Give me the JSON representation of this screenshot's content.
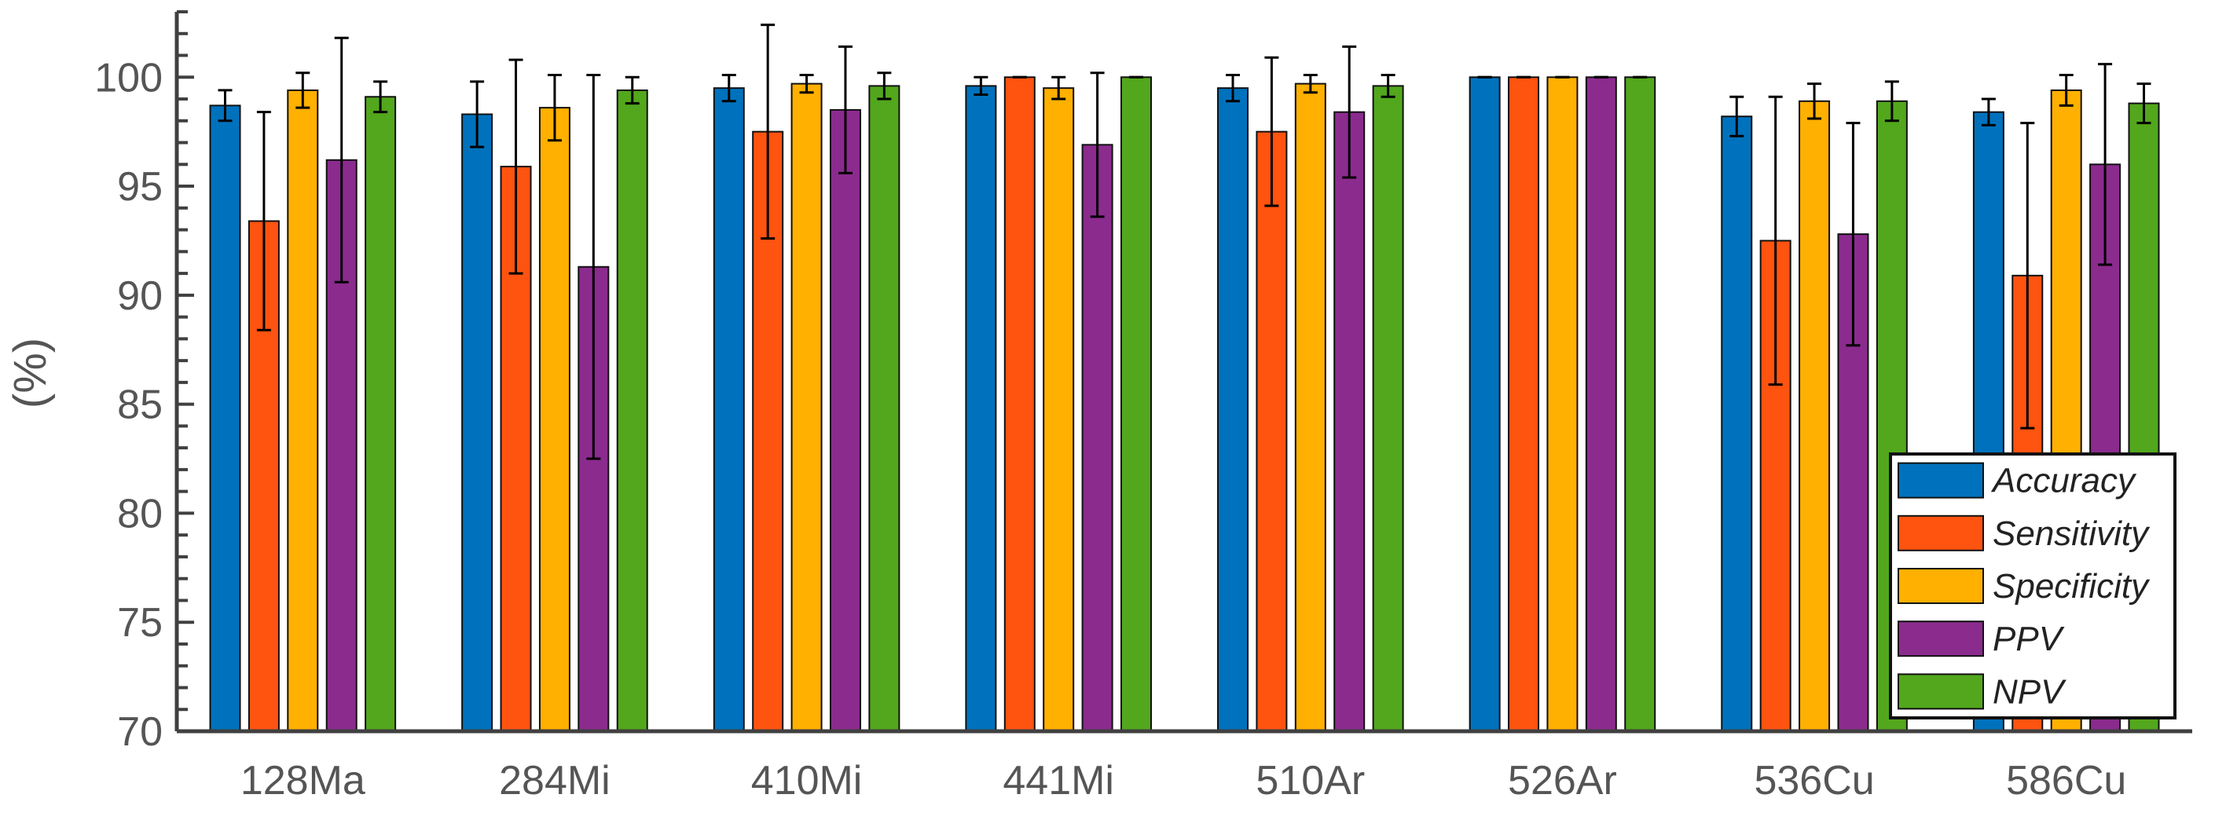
{
  "chart_data": {
    "type": "bar",
    "title": "",
    "xlabel": "",
    "ylabel": "(%)",
    "ylim": [
      70,
      103
    ],
    "yticks": [
      70,
      75,
      80,
      85,
      90,
      95,
      100
    ],
    "categories": [
      "128Ma",
      "284Mi",
      "410Mi",
      "441Mi",
      "510Ar",
      "526Ar",
      "536Cu",
      "586Cu"
    ],
    "legend_position": "bottom-right",
    "series": [
      {
        "name": "Accuracy",
        "color": "#0072BD",
        "values": [
          98.7,
          98.3,
          99.5,
          99.6,
          99.5,
          100.0,
          98.2,
          98.4
        ],
        "errors": [
          0.7,
          1.5,
          0.6,
          0.4,
          0.6,
          0.0,
          0.9,
          0.6
        ]
      },
      {
        "name": "Sensitivity",
        "color": "#FF5310",
        "values": [
          93.4,
          95.9,
          97.5,
          100.0,
          97.5,
          100.0,
          92.5,
          90.9
        ],
        "errors": [
          5.0,
          4.9,
          4.9,
          0.0,
          3.4,
          0.0,
          6.6,
          7.0
        ]
      },
      {
        "name": "Specificity",
        "color": "#FFB000",
        "values": [
          99.4,
          98.6,
          99.7,
          99.5,
          99.7,
          100.0,
          98.9,
          99.4
        ],
        "errors": [
          0.8,
          1.5,
          0.4,
          0.5,
          0.4,
          0.0,
          0.8,
          0.7
        ]
      },
      {
        "name": "PPV",
        "color": "#8B2B8E",
        "values": [
          96.2,
          91.3,
          98.5,
          96.9,
          98.4,
          100.0,
          92.8,
          96.0
        ],
        "errors": [
          5.6,
          8.8,
          2.9,
          3.3,
          3.0,
          0.0,
          5.1,
          4.6
        ]
      },
      {
        "name": "NPV",
        "color": "#52A71C",
        "values": [
          99.1,
          99.4,
          99.6,
          100.0,
          99.6,
          100.0,
          98.9,
          98.8
        ],
        "errors": [
          0.7,
          0.6,
          0.6,
          0.0,
          0.5,
          0.0,
          0.9,
          0.9
        ]
      }
    ]
  }
}
